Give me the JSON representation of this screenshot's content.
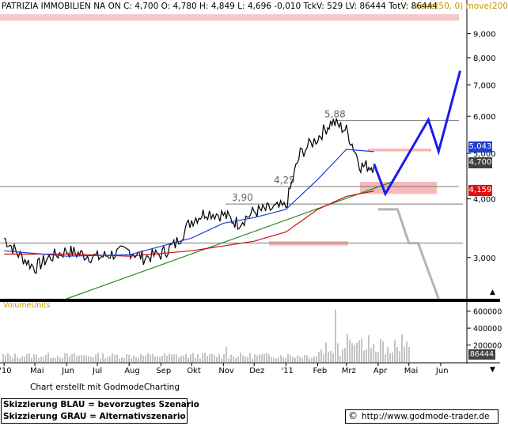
{
  "header": {
    "ticker_line": "PATRIZIA IMMOBILIEN NA ON C: 4,700 O: 4,780 H: 4,849 L: 4,696 -0,010 TckV: 529 LV: 86444 TotV: 86444",
    "ma_legend": "move(50, 0) move(200"
  },
  "volume_panel": {
    "label": "VolumeUnits"
  },
  "footer": {
    "credit": "Chart erstellt mit GodmodeCharting",
    "legend_blue": "Skizzierung BLAU = bevorzugtes Szenario",
    "legend_grey": "Skizzierung GRAU = Alternativszenario",
    "copyright_symbol": "©",
    "url": "http://www.godmode-trader.de"
  },
  "colors": {
    "price": "#000000",
    "ma50": "#1f3fd0",
    "ma200": "#cc1111",
    "trendline": "#228b22",
    "blue_scenario": "#1a1af0",
    "grey_scenario": "#b4b4b4",
    "support_zone": "#f7b8b8",
    "badge_last": "#404040",
    "badge_ma50": "#1f3fd0",
    "badge_ma200": "#dd1111"
  },
  "chart_data": {
    "type": "line",
    "title": "PATRIZIA IMMOBILIEN NA ON",
    "y_axis": {
      "scale": "log",
      "ylim": [
        2.45,
        9.6
      ],
      "ticks": [
        "9,000",
        "8,000",
        "7,000",
        "6,000",
        "5,000",
        "4,000",
        "3,000"
      ]
    },
    "x_axis": {
      "tick_labels": [
        "'10",
        "Mai",
        "Jun",
        "Jul",
        "Aug",
        "Sep",
        "Okt",
        "Nov",
        "Dez",
        "'11",
        "Feb",
        "Mrz",
        "Apr",
        "Mai",
        "Jun"
      ]
    },
    "value_badges": {
      "last": "4,700",
      "ma50": "5,043",
      "ma200": "4,159"
    },
    "level_annotations": [
      {
        "label": "5,88",
        "value": 5.88
      },
      {
        "label": "4,25",
        "value": 4.25
      },
      {
        "label": "3,90",
        "value": 3.9
      }
    ],
    "horizontal_levels": [
      5.88,
      4.25,
      3.9,
      3.22
    ],
    "support_zones": [
      {
        "from": 4.1,
        "to": 4.35
      },
      {
        "from": 3.18,
        "to": 3.25
      },
      {
        "from": 5.05,
        "to": 5.12
      }
    ],
    "price": {
      "x": [
        "2010-04-01",
        "2010-04-15",
        "2010-05-01",
        "2010-05-15",
        "2010-06-01",
        "2010-06-15",
        "2010-07-01",
        "2010-07-15",
        "2010-08-01",
        "2010-08-15",
        "2010-09-01",
        "2010-09-15",
        "2010-10-01",
        "2010-10-15",
        "2010-11-01",
        "2010-11-15",
        "2010-12-01",
        "2010-12-15",
        "2011-01-01",
        "2011-01-15",
        "2011-02-01",
        "2011-02-15",
        "2011-03-01",
        "2011-03-15",
        "2011-03-28"
      ],
      "close": [
        3.3,
        3.05,
        2.85,
        3.0,
        3.1,
        3.05,
        3.0,
        3.05,
        3.1,
        3.0,
        3.05,
        3.2,
        3.6,
        3.75,
        3.7,
        3.55,
        3.75,
        3.8,
        3.85,
        5.0,
        5.4,
        5.85,
        5.6,
        4.7,
        4.7
      ]
    },
    "ma50": {
      "x": [
        "2010-04-01",
        "2010-06-01",
        "2010-08-01",
        "2010-10-01",
        "2010-11-01",
        "2010-12-01",
        "2011-01-01",
        "2011-02-01",
        "2011-03-01",
        "2011-03-28"
      ],
      "values": [
        3.1,
        3.02,
        3.04,
        3.3,
        3.55,
        3.65,
        3.8,
        4.4,
        5.1,
        5.043
      ]
    },
    "ma200": {
      "x": [
        "2010-04-01",
        "2010-06-01",
        "2010-08-01",
        "2010-10-01",
        "2010-12-01",
        "2011-01-01",
        "2011-02-01",
        "2011-03-01",
        "2011-03-28"
      ],
      "values": [
        3.05,
        3.05,
        3.02,
        3.1,
        3.25,
        3.4,
        3.8,
        4.05,
        4.159
      ]
    },
    "trendline": {
      "x": [
        "2010-06-01",
        "2011-04-15"
      ],
      "values": [
        2.45,
        4.35
      ]
    },
    "blue_scenario": {
      "x": [
        "2011-03-28",
        "2011-04-08",
        "2011-05-20",
        "2011-05-30",
        "2011-06-20"
      ],
      "values": [
        4.75,
        4.1,
        5.9,
        5.05,
        7.5
      ]
    },
    "grey_scenario": {
      "x": [
        "2011-04-01",
        "2011-04-20",
        "2011-05-01",
        "2011-05-10",
        "2011-05-30"
      ],
      "values": [
        3.8,
        3.8,
        3.22,
        3.22,
        2.45
      ]
    },
    "volume": {
      "ticks": [
        "600000",
        "400000",
        "200000"
      ],
      "last_badge": "86444"
    }
  }
}
